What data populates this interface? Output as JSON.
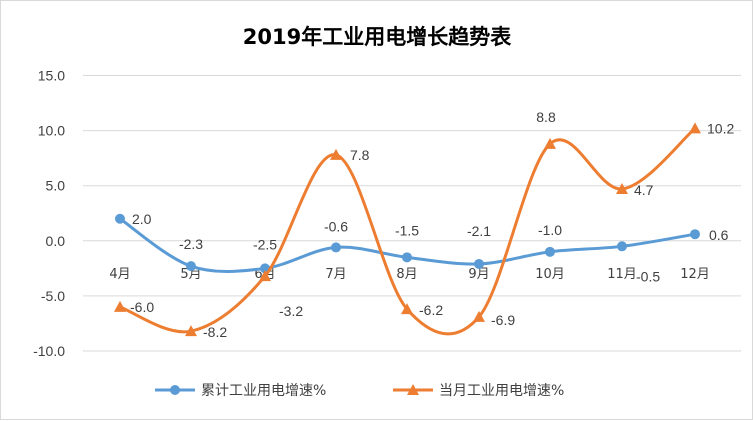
{
  "chart_data": {
    "type": "line",
    "title": "2019年工业用电增长趋势表",
    "categories": [
      "4月",
      "5月",
      "6月",
      "7月",
      "8月",
      "9月",
      "10月",
      "11月",
      "12月"
    ],
    "y_ticks": [
      "15.0",
      "10.0",
      "5.0",
      "0.0",
      "-5.0",
      "-10.0"
    ],
    "ylim": [
      -10,
      15
    ],
    "grid": true,
    "legend_position": "bottom",
    "series": [
      {
        "name": "累计工业用电增速%",
        "color": "#5b9bd5",
        "marker": "circle",
        "values": [
          2.0,
          -2.3,
          -2.5,
          -0.6,
          -1.5,
          -2.1,
          -1.0,
          -0.5,
          0.6
        ],
        "labels": [
          "2.0",
          "-2.3",
          "-2.5",
          "-0.6",
          "-1.5",
          "-2.1",
          "-1.0",
          "-0.5",
          "0.6"
        ]
      },
      {
        "name": "当月工业用电增速%",
        "color": "#ed7d31",
        "marker": "triangle",
        "values": [
          -6.0,
          -8.2,
          -3.2,
          7.8,
          -6.2,
          -6.9,
          8.8,
          4.7,
          10.2
        ],
        "labels": [
          "-6.0",
          "-8.2",
          "-3.2",
          "7.8",
          "-6.2",
          "-6.9",
          "8.8",
          "4.7",
          "10.2"
        ]
      }
    ]
  }
}
